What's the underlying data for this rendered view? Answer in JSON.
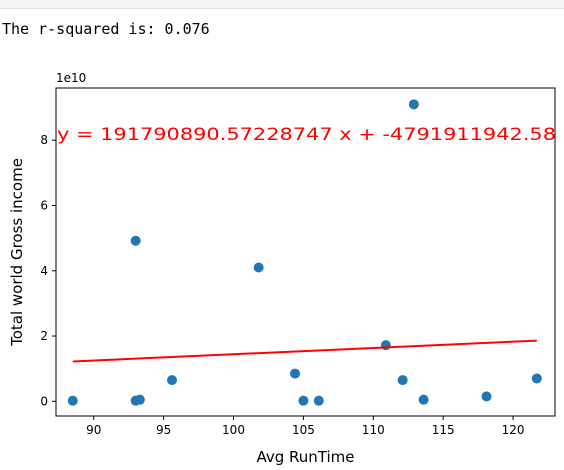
{
  "output": {
    "text": "The r-squared is: 0.076"
  },
  "chart_data": {
    "type": "scatter",
    "xlabel": "Avg RunTime",
    "ylabel": "Total world Gross income",
    "y_scale_label": "1e10",
    "xlim": [
      87.3,
      123.0
    ],
    "ylim": [
      -0.45,
      9.6
    ],
    "xticks": [
      90,
      95,
      100,
      105,
      110,
      115,
      120
    ],
    "yticks": [
      0,
      2,
      4,
      6,
      8
    ],
    "grid": false,
    "point_color": "#1f77b4",
    "line_color": "#ff0000",
    "points": [
      {
        "x": 88.5,
        "y": 0.02
      },
      {
        "x": 93.0,
        "y": 4.92
      },
      {
        "x": 93.0,
        "y": 0.02
      },
      {
        "x": 93.3,
        "y": 0.05
      },
      {
        "x": 95.6,
        "y": 0.65
      },
      {
        "x": 101.8,
        "y": 4.1
      },
      {
        "x": 104.4,
        "y": 0.85
      },
      {
        "x": 105.0,
        "y": 0.02
      },
      {
        "x": 106.1,
        "y": 0.02
      },
      {
        "x": 110.9,
        "y": 1.72
      },
      {
        "x": 112.1,
        "y": 0.65
      },
      {
        "x": 112.9,
        "y": 9.1
      },
      {
        "x": 113.6,
        "y": 0.05
      },
      {
        "x": 118.1,
        "y": 0.15
      },
      {
        "x": 121.7,
        "y": 0.7
      }
    ],
    "regression": {
      "x": [
        88.5,
        121.7
      ],
      "y": [
        1.22,
        1.86
      ],
      "equation": "y = 191790890.57228747 x + -4791911942.58"
    }
  }
}
